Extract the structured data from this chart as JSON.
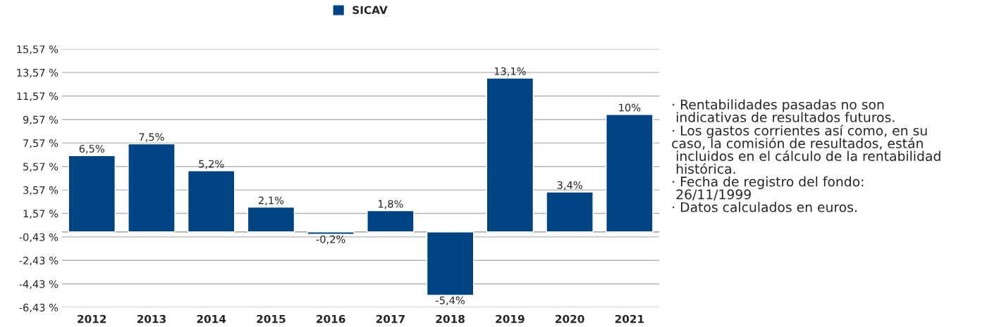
{
  "chart_data": {
    "type": "bar",
    "categories": [
      "2012",
      "2013",
      "2014",
      "2015",
      "2016",
      "2017",
      "2018",
      "2019",
      "2020",
      "2021"
    ],
    "series": [
      {
        "name": "SICAV",
        "color": "#004382",
        "values": [
          6.5,
          7.5,
          5.2,
          2.1,
          -0.2,
          1.8,
          -5.4,
          13.1,
          3.4,
          10
        ],
        "value_labels": [
          "6,5%",
          "7,5%",
          "5,2%",
          "2,1%",
          "-0,2%",
          "1,8%",
          "-5,4%",
          "13,1%",
          "3,4%",
          "10%"
        ]
      }
    ],
    "ylim": [
      -6.43,
      15.57
    ],
    "yticks": [
      {
        "value": -6.43,
        "label": "-6,43 %"
      },
      {
        "value": -4.43,
        "label": "-4,43 %"
      },
      {
        "value": -2.43,
        "label": "-2,43 %"
      },
      {
        "value": -0.43,
        "label": "-0,43 %"
      },
      {
        "value": 1.57,
        "label": "1,57 %"
      },
      {
        "value": 3.57,
        "label": "3,57 %"
      },
      {
        "value": 5.57,
        "label": "5,57 %"
      },
      {
        "value": 7.57,
        "label": "7,57 %"
      },
      {
        "value": 9.57,
        "label": "9,57 %"
      },
      {
        "value": 11.57,
        "label": "11,57 %"
      },
      {
        "value": 13.57,
        "label": "13,57 %"
      },
      {
        "value": 15.57,
        "label": "15,57 %"
      }
    ],
    "grid": "y",
    "legend": "top",
    "annotations": [
      "· Rentabilidades pasadas no son\n indicativas de resultados futuros.\n· Los gastos corrientes así como, en su\ncaso, la comisión de resultados, están\n incluidos en el cálculo de la rentabilidad\n histórica.\n· Fecha de registro del fondo:\n 26/11/1999\n· Datos calculados en euros."
    ]
  }
}
